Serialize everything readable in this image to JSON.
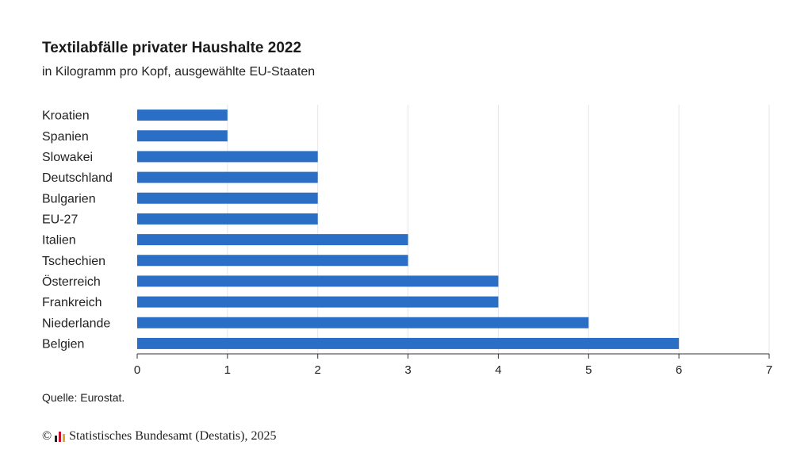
{
  "header": {
    "title": "Textilabfälle privater Haushalte 2022",
    "subtitle": "in Kilogramm pro Kopf, ausgewählte EU-Staaten"
  },
  "footer": {
    "source": "Quelle: Eurostat.",
    "copyright_symbol": "©",
    "copyright_text": "Statistisches Bundesamt (Destatis), 2025"
  },
  "colors": {
    "bar": "#2a6ec6",
    "grid": "#e6e6e6",
    "axis": "#333333"
  },
  "chart_data": {
    "type": "bar",
    "orientation": "horizontal",
    "title": "Textilabfälle privater Haushalte 2022",
    "subtitle": "in Kilogramm pro Kopf, ausgewählte EU-Staaten",
    "categories": [
      "Kroatien",
      "Spanien",
      "Slowakei",
      "Deutschland",
      "Bulgarien",
      "EU-27",
      "Italien",
      "Tschechien",
      "Österreich",
      "Frankreich",
      "Niederlande",
      "Belgien"
    ],
    "values": [
      1,
      1,
      2,
      2,
      2,
      2,
      3,
      3,
      4,
      4,
      5,
      6
    ],
    "xlim": [
      0,
      7
    ],
    "xticks": [
      "0",
      "1",
      "2",
      "3",
      "4",
      "5",
      "6",
      "7"
    ],
    "grid": true
  }
}
